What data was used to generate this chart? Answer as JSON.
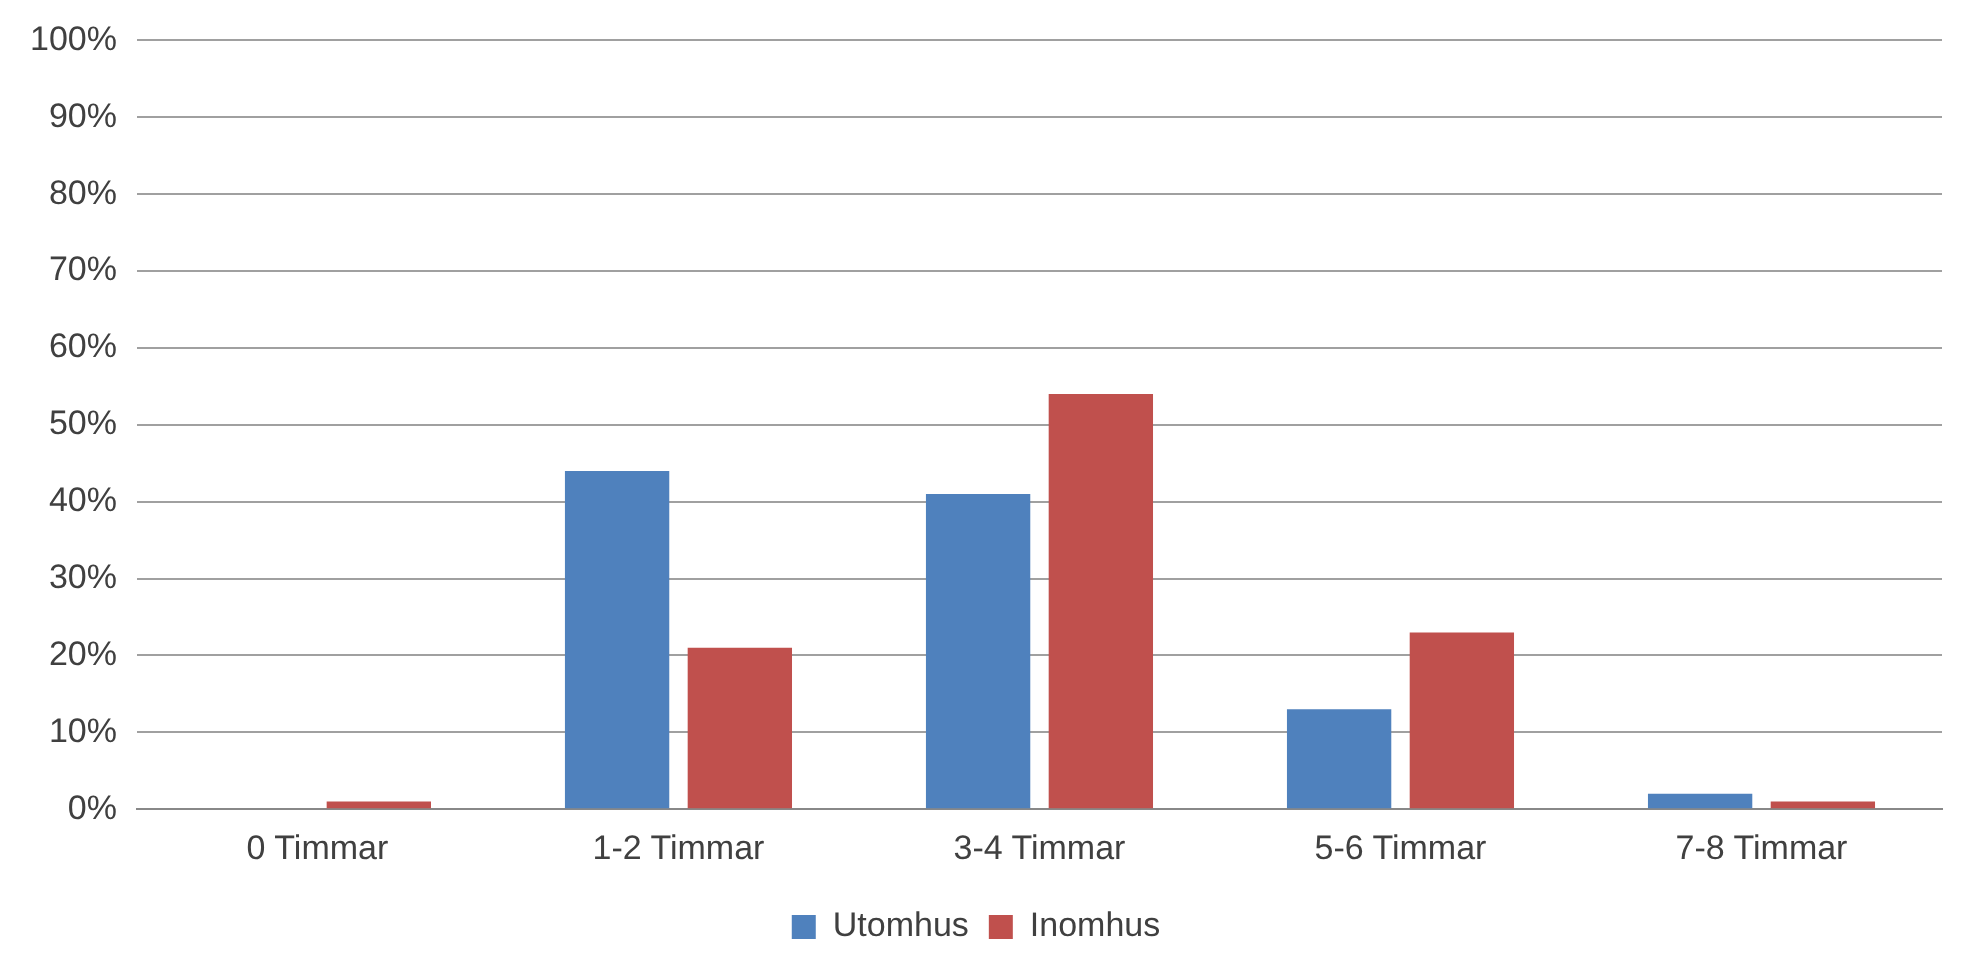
{
  "chart_data": {
    "type": "bar",
    "categories": [
      "0 Timmar",
      "1-2 Timmar",
      "3-4 Timmar",
      "5-6 Timmar",
      "7-8 Timmar"
    ],
    "series": [
      {
        "name": "Utomhus",
        "color": "#4f81bd",
        "values": [
          0,
          44,
          41,
          13,
          2
        ]
      },
      {
        "name": "Inomhus",
        "color": "#c0504d",
        "values": [
          1,
          21,
          54,
          23,
          1
        ]
      }
    ],
    "ylim": [
      0,
      100
    ],
    "yticks": [
      {
        "value": 0,
        "label": "0%"
      },
      {
        "value": 10,
        "label": "10%"
      },
      {
        "value": 20,
        "label": "20%"
      },
      {
        "value": 30,
        "label": "30%"
      },
      {
        "value": 40,
        "label": "40%"
      },
      {
        "value": 50,
        "label": "50%"
      },
      {
        "value": 60,
        "label": "60%"
      },
      {
        "value": 70,
        "label": "70%"
      },
      {
        "value": 80,
        "label": "80%"
      },
      {
        "value": 90,
        "label": "90%"
      },
      {
        "value": 100,
        "label": "100%"
      }
    ],
    "grid": "y",
    "legend": "bottom"
  }
}
